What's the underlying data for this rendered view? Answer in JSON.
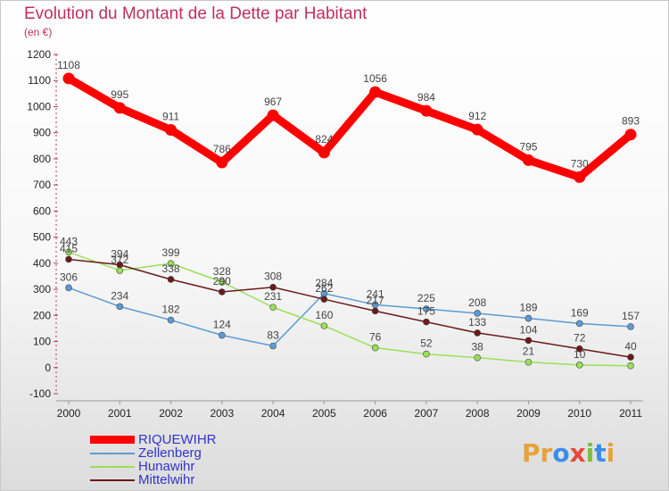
{
  "title": "Evolution du Montant de la Dette par Habitant",
  "subtitle": "(en €)",
  "logo": {
    "letters": [
      "P",
      "r",
      "o",
      "x",
      "i",
      "t",
      "i"
    ],
    "colors": [
      "#e8a23a",
      "#e8a23a",
      "#3a8ee8",
      "#e84a3a",
      "#7ac043",
      "#3a8ee8",
      "#e8a23a"
    ]
  },
  "chart_data": {
    "type": "line",
    "categories": [
      "2000",
      "2001",
      "2002",
      "2003",
      "2004",
      "2005",
      "2006",
      "2007",
      "2008",
      "2009",
      "2010",
      "2011"
    ],
    "ylim": [
      -100,
      1200
    ],
    "yticks": [
      "-100",
      "0",
      "100",
      "200",
      "300",
      "400",
      "500",
      "600",
      "700",
      "800",
      "900",
      "1000",
      "1100",
      "1200"
    ],
    "grid": false,
    "legend": "bottom-left",
    "series": [
      {
        "name": "RIQUEWIHR",
        "color": "#ff0000",
        "values": [
          1108,
          995,
          911,
          786,
          967,
          824,
          1056,
          984,
          912,
          795,
          730,
          893
        ],
        "labels": [
          "1108",
          "995",
          "911",
          "786",
          "967",
          "824",
          "1056",
          "984",
          "912",
          "795",
          "730",
          "893"
        ]
      },
      {
        "name": "Zellenberg",
        "color": "#5b9bd5",
        "values": [
          306,
          234,
          182,
          124,
          83,
          284,
          241,
          225,
          208,
          189,
          169,
          157
        ],
        "labels": [
          "306",
          "234",
          "182",
          "124",
          "83",
          "284",
          "241",
          "225",
          "208",
          "189",
          "169",
          "157"
        ]
      },
      {
        "name": "Hunawihr",
        "color": "#99e05a",
        "values": [
          443,
          372,
          399,
          328,
          231,
          160,
          76,
          52,
          38,
          21,
          10,
          7
        ],
        "labels": [
          "443",
          "372",
          "399",
          "328",
          "231",
          "160",
          "76",
          "52",
          "38",
          "21",
          "10",
          ""
        ]
      },
      {
        "name": "Mittelwihr",
        "color": "#6b1a1a",
        "values": [
          415,
          394,
          338,
          290,
          308,
          262,
          217,
          175,
          133,
          104,
          72,
          40
        ],
        "labels": [
          "415",
          "394",
          "338",
          "290",
          "308",
          "262",
          "217",
          "175",
          "133",
          "104",
          "72",
          "40"
        ]
      }
    ]
  }
}
